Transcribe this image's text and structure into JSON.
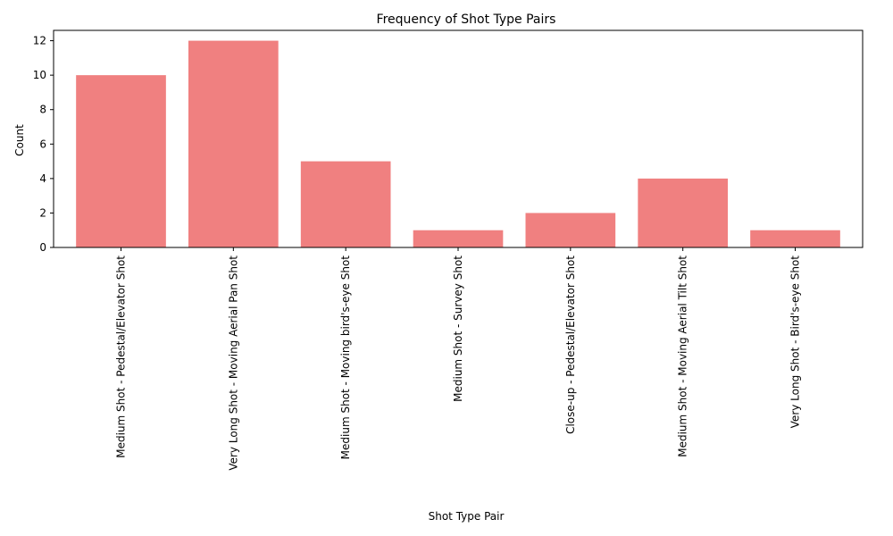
{
  "chart_data": {
    "type": "bar",
    "title": "Frequency of Shot Type Pairs",
    "xlabel": "Shot Type Pair",
    "ylabel": "Count",
    "categories": [
      "Medium Shot - Pedestal/Elevator Shot",
      "Very Long Shot - Moving Aerial Pan Shot",
      "Medium Shot - Moving bird's-eye Shot",
      "Medium Shot - Survey Shot",
      "Close-up - Pedestal/Elevator Shot",
      "Medium Shot - Moving Aerial Tilt Shot",
      "Very Long Shot - Bird's-eye Shot"
    ],
    "values": [
      10,
      12,
      5,
      1,
      2,
      4,
      1
    ],
    "ylim": [
      0,
      12.6
    ],
    "yticks": [
      0,
      2,
      4,
      6,
      8,
      10,
      12
    ],
    "bar_color": "#f08080",
    "grid": false,
    "x_tick_rotation": "vertical"
  }
}
